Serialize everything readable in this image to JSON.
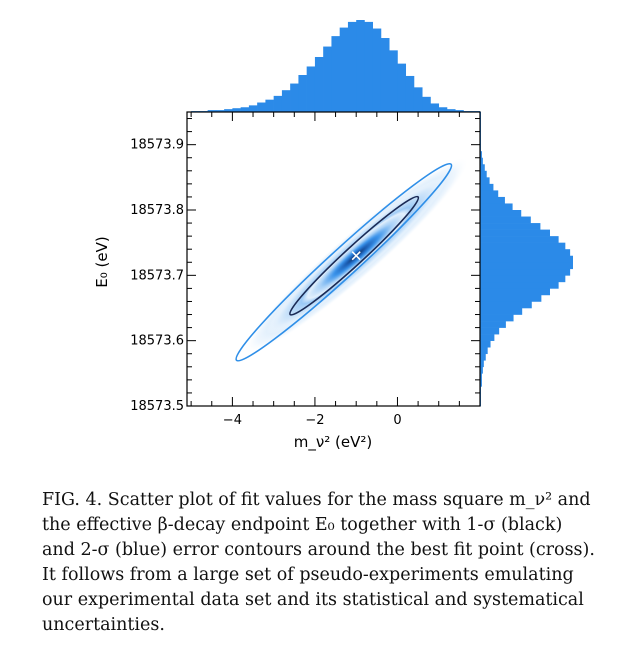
{
  "chart_data": {
    "type": "scatter",
    "subtype": "2d-density-with-marginal-histograms",
    "xlabel": "m_ν² (eV²)",
    "ylabel": "E₀ (eV)",
    "xlim": [
      -5.1,
      2.0
    ],
    "ylim": [
      18573.5,
      18573.95
    ],
    "x_ticks": [
      -4,
      -2,
      0
    ],
    "x_tick_labels": [
      "−4",
      "−2",
      "0"
    ],
    "y_ticks": [
      18573.5,
      18573.6,
      18573.7,
      18573.8,
      18573.9
    ],
    "y_tick_labels": [
      "18573.5",
      "18573.6",
      "18573.7",
      "18573.8",
      "18573.9"
    ],
    "best_fit": {
      "x": -1.0,
      "y": 18573.73,
      "marker": "cross"
    },
    "contours": [
      {
        "name": "1-σ",
        "color": "#1a2a55",
        "center": [
          -1.0,
          18573.73
        ],
        "x_extent": [
          -2.6,
          0.5
        ],
        "y_extent": [
          18573.64,
          18573.82
        ]
      },
      {
        "name": "2-σ",
        "color": "#2f8fe8",
        "center": [
          -1.3,
          18573.715
        ],
        "x_extent": [
          -3.9,
          1.3
        ],
        "y_extent": [
          18573.57,
          18573.87
        ]
      }
    ],
    "density": {
      "peak": [
        -1.0,
        18573.73
      ],
      "colors": [
        "#eaf3fd",
        "#bcdcf9",
        "#6fb3f1",
        "#2f8fe8",
        "#1c62b8",
        "#12305e"
      ]
    },
    "marginal_x": {
      "bins": [
        -5.0,
        -4.8,
        -4.6,
        -4.4,
        -4.2,
        -4.0,
        -3.8,
        -3.6,
        -3.4,
        -3.2,
        -3.0,
        -2.8,
        -2.6,
        -2.4,
        -2.2,
        -2.0,
        -1.8,
        -1.6,
        -1.4,
        -1.2,
        -1.0,
        -0.8,
        -0.6,
        -0.4,
        -0.2,
        0.0,
        0.2,
        0.4,
        0.6,
        0.8,
        1.0,
        1.2,
        1.4,
        1.6,
        1.8
      ],
      "counts": [
        1,
        1,
        2,
        2,
        3,
        4,
        5,
        7,
        10,
        13,
        17,
        23,
        30,
        39,
        48,
        58,
        69,
        80,
        89,
        95,
        97,
        95,
        88,
        78,
        65,
        51,
        38,
        26,
        16,
        9,
        5,
        3,
        2,
        1,
        1
      ]
    },
    "marginal_y": {
      "bins": [
        18573.5,
        18573.51,
        18573.52,
        18573.53,
        18573.54,
        18573.55,
        18573.56,
        18573.57,
        18573.58,
        18573.59,
        18573.6,
        18573.61,
        18573.62,
        18573.63,
        18573.64,
        18573.65,
        18573.66,
        18573.67,
        18573.68,
        18573.69,
        18573.7,
        18573.71,
        18573.72,
        18573.73,
        18573.74,
        18573.75,
        18573.76,
        18573.77,
        18573.78,
        18573.79,
        18573.8,
        18573.81,
        18573.82,
        18573.83,
        18573.84,
        18573.85,
        18573.86,
        18573.87,
        18573.88,
        18573.89,
        18573.9,
        18573.91,
        18573.92,
        18573.93,
        18573.94
      ],
      "counts": [
        1,
        1,
        1,
        2,
        2,
        3,
        4,
        6,
        8,
        11,
        15,
        20,
        27,
        35,
        44,
        54,
        64,
        73,
        82,
        89,
        94,
        97,
        97,
        94,
        89,
        82,
        73,
        63,
        53,
        43,
        34,
        26,
        19,
        14,
        10,
        7,
        5,
        3,
        2,
        1,
        1,
        1,
        1,
        1,
        1
      ]
    },
    "colors": {
      "histogram": "#2b8ae8",
      "axes": "#000000",
      "best_fit_marker": "#ffffff"
    }
  },
  "caption": {
    "lines": [
      "FIG. 4.  Scatter plot of fit values for the mass square m_ν² and",
      "the effective β-decay endpoint E₀ together with 1-σ (black)",
      "and 2-σ (blue) error contours around the best fit point (cross).",
      "It follows from a large set of pseudo-experiments emulating",
      "our experimental data set and its statistical and systematical",
      "uncertainties."
    ]
  }
}
